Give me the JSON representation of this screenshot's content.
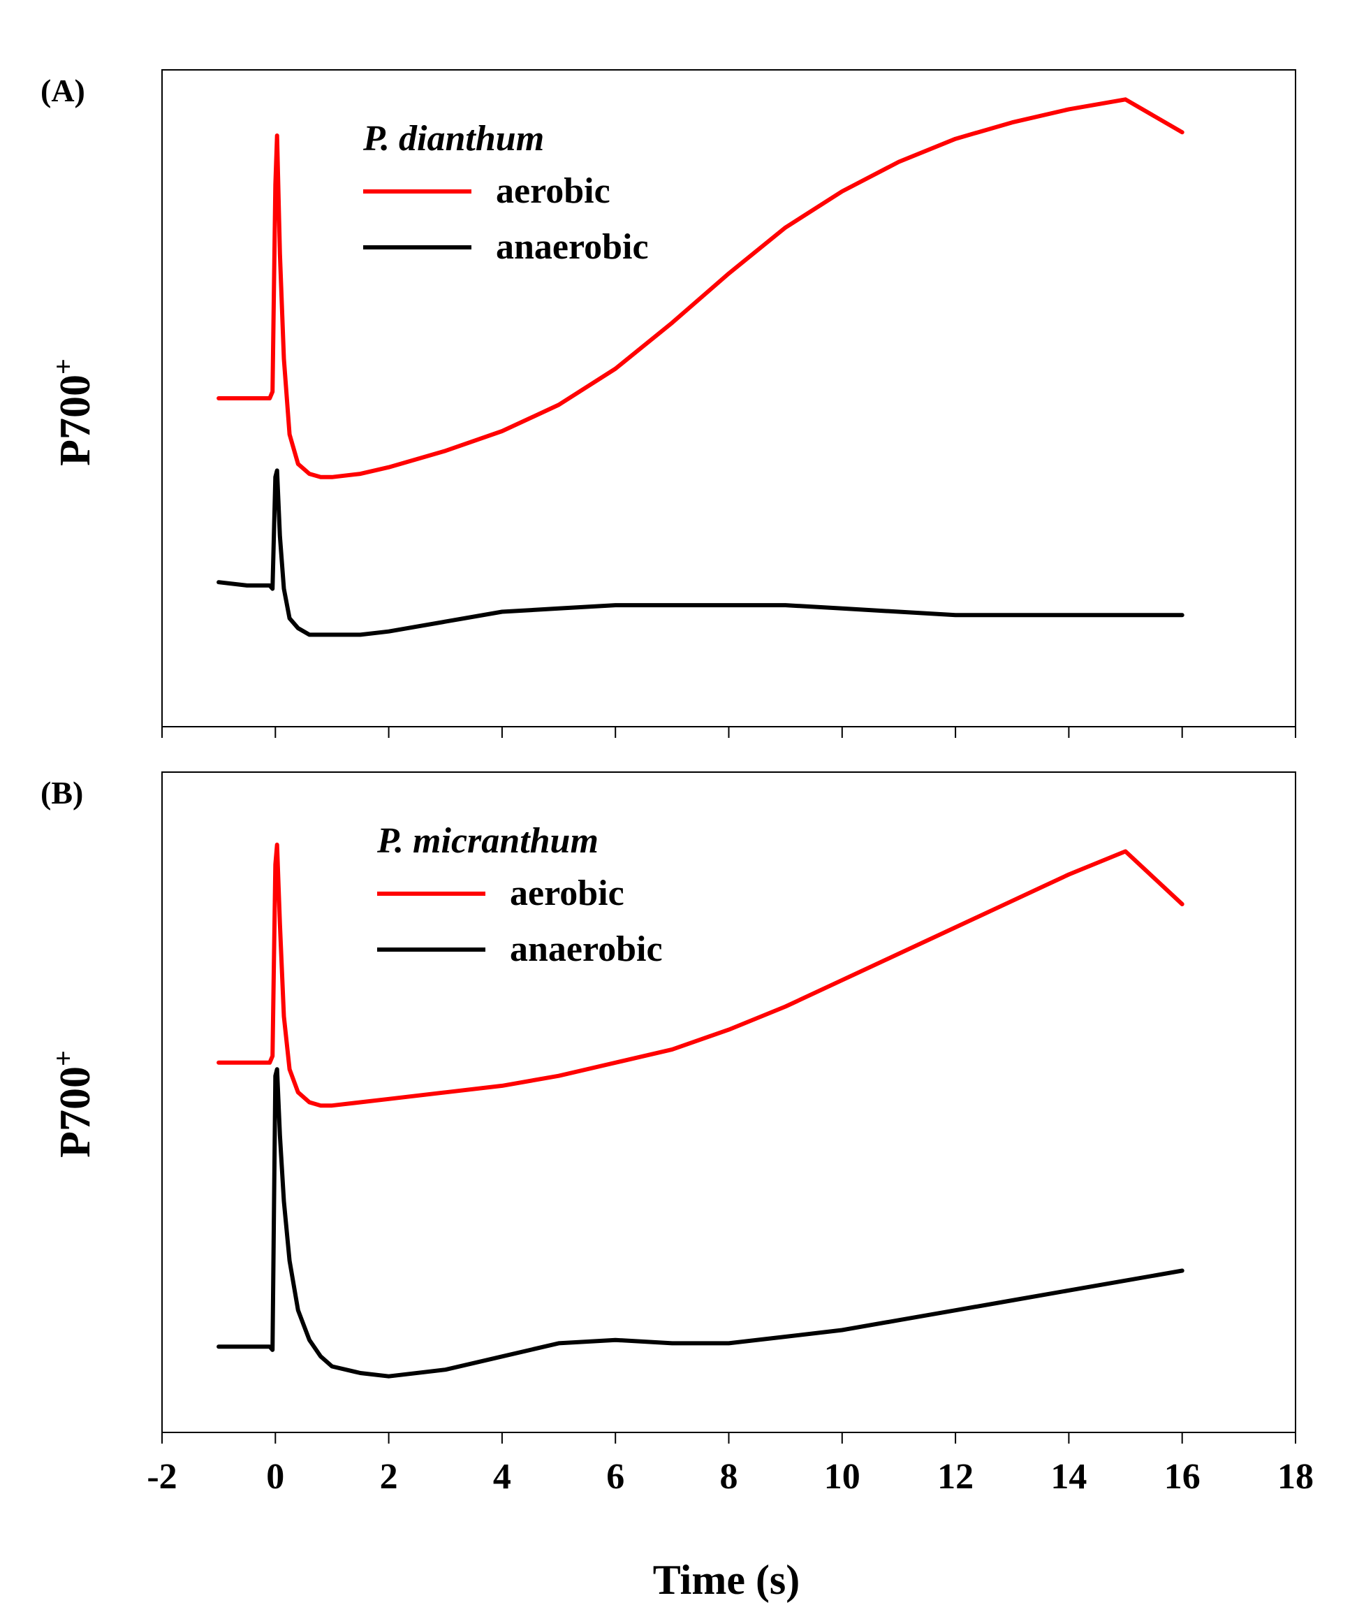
{
  "xaxis": {
    "label": "Time (s)",
    "ticks": [
      "-2",
      "0",
      "2",
      "4",
      "6",
      "8",
      "10",
      "12",
      "14",
      "16",
      "18"
    ],
    "range": [
      -2,
      18
    ]
  },
  "colors": {
    "aerobic": "#ff0000",
    "anaerobic": "#000000",
    "axis": "#000000"
  },
  "chart_data": [
    {
      "type": "line",
      "panel_label": "(A)",
      "ylabel": "P700",
      "ylabel_sup": "+",
      "species": "P. dianthum",
      "xlim": [
        -2,
        18
      ],
      "ylim": [
        0,
        100
      ],
      "y_ticks_shown": false,
      "legend_placement": "top-left",
      "series": [
        {
          "name": "aerobic",
          "color": "#ff0000",
          "x": [
            -1.0,
            -0.5,
            -0.1,
            -0.05,
            0.0,
            0.03,
            0.08,
            0.15,
            0.25,
            0.4,
            0.6,
            0.8,
            1.0,
            1.5,
            2.0,
            3.0,
            4.0,
            5.0,
            6.0,
            7.0,
            8.0,
            9.0,
            10.0,
            11.0,
            12.0,
            13.0,
            14.0,
            15.0,
            16.0
          ],
          "y": [
            50.0,
            50.0,
            50.0,
            51.0,
            82.5,
            90.0,
            72.0,
            56.0,
            44.5,
            40.0,
            38.5,
            38.0,
            38.0,
            38.5,
            39.5,
            42.0,
            45.0,
            49.0,
            54.5,
            61.5,
            69.0,
            76.0,
            81.5,
            86.0,
            89.5,
            92.0,
            94.0,
            95.5,
            90.5
          ]
        },
        {
          "name": "anaerobic",
          "color": "#000000",
          "x": [
            -1.0,
            -0.5,
            -0.1,
            -0.05,
            0.0,
            0.03,
            0.08,
            0.15,
            0.25,
            0.4,
            0.6,
            0.8,
            1.0,
            1.5,
            2.0,
            3.0,
            4.0,
            5.0,
            6.0,
            7.0,
            8.0,
            9.0,
            10.0,
            11.0,
            12.0,
            13.0,
            14.0,
            15.0,
            16.0
          ],
          "y": [
            22.0,
            21.5,
            21.5,
            21.0,
            38.0,
            39.0,
            29.0,
            21.0,
            16.5,
            15.0,
            14.0,
            14.0,
            14.0,
            14.0,
            14.5,
            16.0,
            17.5,
            18.0,
            18.5,
            18.5,
            18.5,
            18.5,
            18.0,
            17.5,
            17.0,
            17.0,
            17.0,
            17.0,
            17.0
          ]
        }
      ]
    },
    {
      "type": "line",
      "panel_label": "(B)",
      "ylabel": "P700",
      "ylabel_sup": "+",
      "species": "P. micranthum",
      "xlim": [
        -2,
        18
      ],
      "ylim": [
        0,
        100
      ],
      "y_ticks_shown": false,
      "legend_placement": "top-left",
      "series": [
        {
          "name": "aerobic",
          "color": "#ff0000",
          "x": [
            -1.0,
            -0.5,
            -0.1,
            -0.05,
            0.0,
            0.03,
            0.08,
            0.15,
            0.25,
            0.4,
            0.6,
            0.8,
            1.0,
            1.5,
            2.0,
            3.0,
            4.0,
            5.0,
            6.0,
            7.0,
            8.0,
            9.0,
            10.0,
            11.0,
            12.0,
            13.0,
            14.0,
            15.0,
            16.0
          ],
          "y": [
            56.0,
            56.0,
            56.0,
            57.0,
            86.0,
            89.0,
            77.0,
            63.0,
            55.0,
            51.5,
            50.0,
            49.5,
            49.5,
            50.0,
            50.5,
            51.5,
            52.5,
            54.0,
            56.0,
            58.0,
            61.0,
            64.5,
            68.5,
            72.5,
            76.5,
            80.5,
            84.5,
            88.0,
            80.0
          ]
        },
        {
          "name": "anaerobic",
          "color": "#000000",
          "x": [
            -1.0,
            -0.5,
            -0.1,
            -0.05,
            0.0,
            0.03,
            0.08,
            0.15,
            0.25,
            0.4,
            0.6,
            0.8,
            1.0,
            1.5,
            2.0,
            3.0,
            4.0,
            5.0,
            6.0,
            7.0,
            8.0,
            9.0,
            10.0,
            11.0,
            12.0,
            13.0,
            14.0,
            15.0,
            16.0
          ],
          "y": [
            13.0,
            13.0,
            13.0,
            12.5,
            54.0,
            55.0,
            45.0,
            35.0,
            26.0,
            18.5,
            14.0,
            11.5,
            10.0,
            9.0,
            8.5,
            9.5,
            11.5,
            13.5,
            14.0,
            13.5,
            13.5,
            14.5,
            15.5,
            17.0,
            18.5,
            20.0,
            21.5,
            23.0,
            24.5
          ]
        }
      ]
    }
  ]
}
